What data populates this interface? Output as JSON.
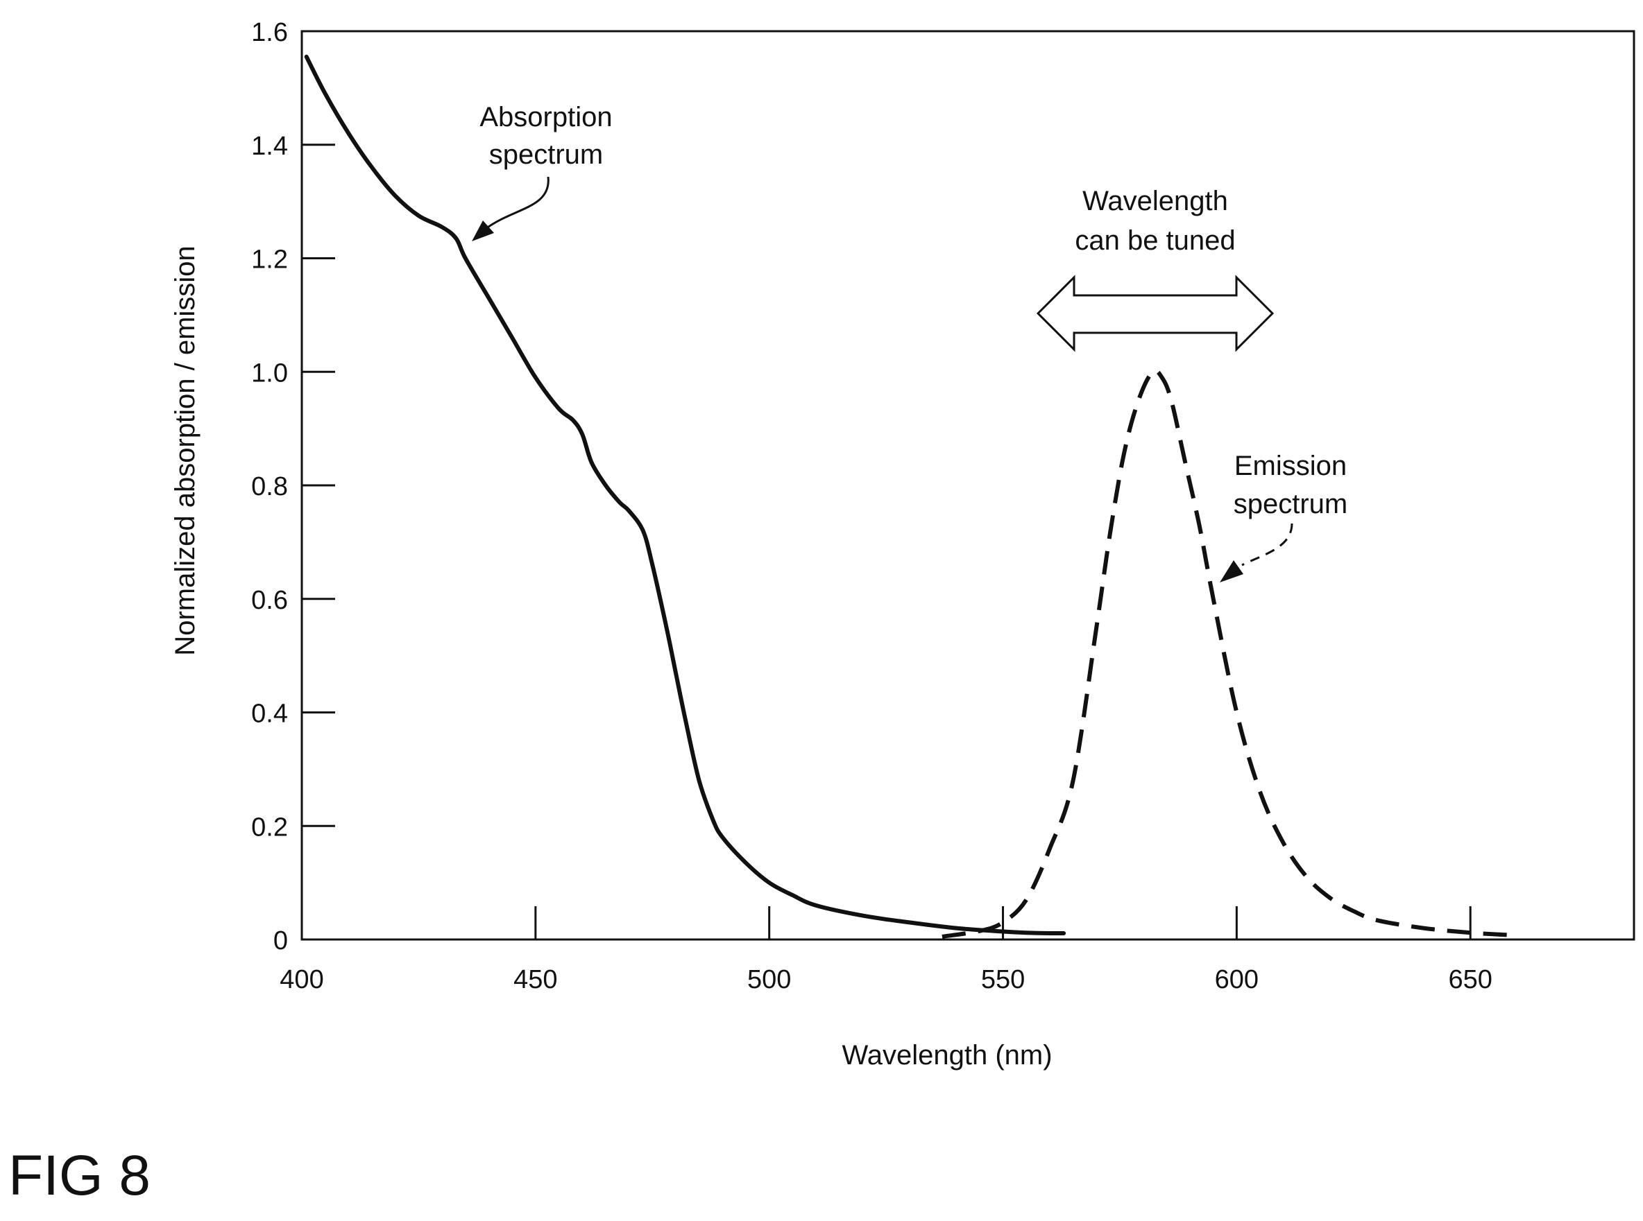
{
  "figure_label": "FIG 8",
  "chart_data": {
    "type": "line",
    "xlabel": "Wavelength (nm)",
    "ylabel": "Normalized absorption / emission",
    "xlim": [
      400,
      685
    ],
    "ylim": [
      0,
      1.6
    ],
    "xticks": [
      400,
      450,
      500,
      550,
      600,
      650
    ],
    "yticks": [
      0,
      0.2,
      0.4,
      0.6,
      0.8,
      1.0,
      1.2,
      1.4,
      1.6
    ],
    "ytick_labels": [
      "0",
      "0.2",
      "0.4",
      "0.6",
      "0.8",
      "1.0",
      "1.2",
      "1.4",
      "1.6"
    ],
    "grid": false,
    "series": [
      {
        "name": "Absorption spectrum",
        "style": "solid",
        "color": "#111111",
        "x": [
          401,
          405,
          410,
          415,
          420,
          425,
          430,
          433,
          435,
          440,
          445,
          450,
          455,
          458,
          460,
          462,
          465,
          468,
          470,
          473,
          475,
          478,
          480,
          482,
          485,
          488,
          490,
          495,
          500,
          505,
          510,
          520,
          530,
          540,
          550,
          555,
          560,
          563
        ],
        "y": [
          1.555,
          1.49,
          1.42,
          1.36,
          1.31,
          1.275,
          1.255,
          1.235,
          1.2,
          1.13,
          1.06,
          0.99,
          0.935,
          0.915,
          0.89,
          0.84,
          0.8,
          0.77,
          0.755,
          0.72,
          0.66,
          0.55,
          0.47,
          0.39,
          0.28,
          0.21,
          0.18,
          0.135,
          0.1,
          0.078,
          0.06,
          0.042,
          0.03,
          0.02,
          0.014,
          0.012,
          0.011,
          0.011
        ]
      },
      {
        "name": "Emission spectrum",
        "style": "dashed",
        "color": "#111111",
        "x": [
          537,
          545,
          550,
          555,
          560,
          565,
          570,
          573,
          576,
          579,
          582,
          584,
          586,
          589,
          592,
          595,
          600,
          605,
          610,
          615,
          620,
          625,
          630,
          640,
          650,
          658
        ],
        "y": [
          0.005,
          0.015,
          0.03,
          0.07,
          0.16,
          0.28,
          0.55,
          0.72,
          0.86,
          0.95,
          1.0,
          0.99,
          0.95,
          0.84,
          0.73,
          0.6,
          0.4,
          0.26,
          0.17,
          0.11,
          0.073,
          0.05,
          0.034,
          0.02,
          0.012,
          0.008
        ]
      }
    ],
    "annotations": [
      {
        "id": "absorption",
        "lines": [
          "Absorption",
          "spectrum"
        ]
      },
      {
        "id": "emission",
        "lines": [
          "Emission",
          "spectrum"
        ]
      },
      {
        "id": "tuning",
        "lines": [
          "Wavelength",
          "can be tuned"
        ]
      }
    ]
  }
}
